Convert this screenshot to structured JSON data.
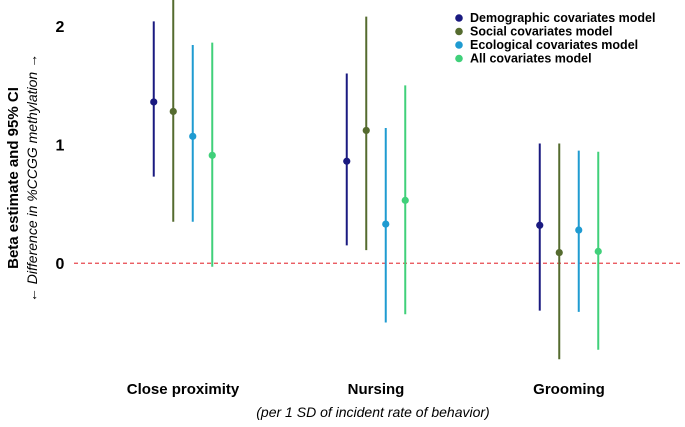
{
  "chart_data": {
    "type": "errorbar",
    "categories": [
      "Close proximity",
      "Nursing",
      "Grooming"
    ],
    "series": [
      {
        "name": "Demographic covariates model",
        "color": "#1a1a80",
        "estimate": [
          1.36,
          0.86,
          0.32
        ],
        "lower": [
          0.73,
          0.15,
          -0.4
        ],
        "upper": [
          2.04,
          1.6,
          1.01
        ]
      },
      {
        "name": "Social covariates model",
        "color": "#556b2f",
        "estimate": [
          1.28,
          1.12,
          0.09
        ],
        "lower": [
          0.35,
          0.11,
          -0.81
        ],
        "upper": [
          2.22,
          2.08,
          1.01
        ]
      },
      {
        "name": "Ecological covariates model",
        "color": "#1f9bd1",
        "estimate": [
          1.07,
          0.33,
          0.28
        ],
        "lower": [
          0.35,
          -0.5,
          -0.41
        ],
        "upper": [
          1.84,
          1.14,
          0.95
        ]
      },
      {
        "name": "All covariates model",
        "color": "#40d07a",
        "estimate": [
          0.91,
          0.53,
          0.1
        ],
        "lower": [
          -0.03,
          -0.43,
          -0.73
        ],
        "upper": [
          1.86,
          1.5,
          0.94
        ]
      }
    ],
    "yticks": [
      0,
      1,
      2
    ],
    "ylim": [
      -0.85,
      2.22
    ],
    "reference_line": 0,
    "ylabel": "Beta estimate and 95% CI",
    "ylabel_sub": "← Difference in %CCGG methylation →",
    "xlabel": "(per 1 SD of incident rate of behavior)",
    "legend_position": "top-right"
  }
}
